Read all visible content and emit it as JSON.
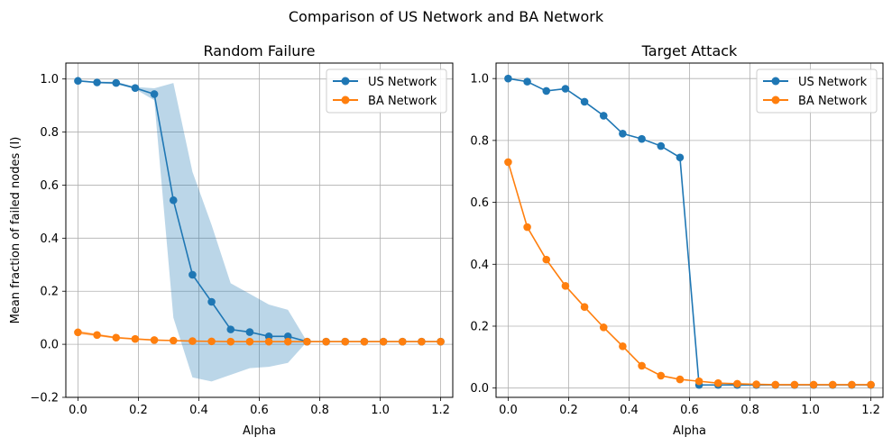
{
  "figure": {
    "title": "Comparison of US Network and BA Network"
  },
  "chart_data": [
    {
      "type": "line",
      "title": "Random Failure",
      "xlabel": "Alpha",
      "ylabel": "Mean fraction of failed nodes (I)",
      "xlim": [
        -0.04,
        1.24
      ],
      "ylim": [
        -0.2,
        1.06
      ],
      "xticks": [
        "0.0",
        "0.2",
        "0.4",
        "0.6",
        "0.8",
        "1.0",
        "1.2"
      ],
      "yticks": [
        "−0.2",
        "0.0",
        "0.2",
        "0.4",
        "0.6",
        "0.8",
        "1.0"
      ],
      "grid": true,
      "legend": "upper right",
      "x": [
        0.0,
        0.0632,
        0.1263,
        0.1895,
        0.2526,
        0.3158,
        0.3789,
        0.4421,
        0.5053,
        0.5684,
        0.6316,
        0.6947,
        0.7579,
        0.8211,
        0.8842,
        0.9474,
        1.0105,
        1.0737,
        1.1368,
        1.2
      ],
      "series": [
        {
          "name": "US Network",
          "color": "#1f77b4",
          "values": [
            0.993,
            0.987,
            0.985,
            0.966,
            0.943,
            0.543,
            0.262,
            0.16,
            0.056,
            0.046,
            0.03,
            0.03,
            0.01,
            0.01,
            0.01,
            0.01,
            0.01,
            0.01,
            0.01,
            0.01
          ],
          "band_upper": [
            0.995,
            0.99,
            0.99,
            0.97,
            0.965,
            0.985,
            0.65,
            0.45,
            0.23,
            0.19,
            0.15,
            0.13,
            0.01,
            0.01,
            0.01,
            0.01,
            0.01,
            0.01,
            0.01,
            0.01
          ],
          "band_lower": [
            0.99,
            0.983,
            0.98,
            0.962,
            0.92,
            0.1,
            -0.125,
            -0.14,
            -0.115,
            -0.09,
            -0.085,
            -0.07,
            0.01,
            0.01,
            0.01,
            0.01,
            0.01,
            0.01,
            0.01,
            0.01
          ]
        },
        {
          "name": "BA Network",
          "color": "#ff7f0e",
          "values": [
            0.045,
            0.035,
            0.025,
            0.02,
            0.016,
            0.014,
            0.012,
            0.011,
            0.01,
            0.01,
            0.01,
            0.01,
            0.01,
            0.01,
            0.01,
            0.01,
            0.01,
            0.01,
            0.01,
            0.01
          ],
          "band_upper": [
            0.052,
            0.04,
            0.029,
            0.023,
            0.018,
            0.016,
            0.013,
            0.012,
            0.011,
            0.011,
            0.011,
            0.011,
            0.011,
            0.011,
            0.011,
            0.011,
            0.011,
            0.011,
            0.011,
            0.011
          ],
          "band_lower": [
            0.038,
            0.03,
            0.021,
            0.017,
            0.014,
            0.012,
            0.011,
            0.01,
            0.009,
            0.009,
            0.009,
            0.009,
            0.009,
            0.009,
            0.009,
            0.009,
            0.009,
            0.009,
            0.009,
            0.009
          ]
        }
      ]
    },
    {
      "type": "line",
      "title": "Target Attack",
      "xlabel": "Alpha",
      "ylabel": "",
      "xlim": [
        -0.04,
        1.24
      ],
      "ylim": [
        -0.03,
        1.05
      ],
      "xticks": [
        "0.0",
        "0.2",
        "0.4",
        "0.6",
        "0.8",
        "1.0",
        "1.2"
      ],
      "yticks": [
        "0.0",
        "0.2",
        "0.4",
        "0.6",
        "0.8",
        "1.0"
      ],
      "grid": true,
      "legend": "upper right",
      "x": [
        0.0,
        0.0632,
        0.1263,
        0.1895,
        0.2526,
        0.3158,
        0.3789,
        0.4421,
        0.5053,
        0.5684,
        0.6316,
        0.6947,
        0.7579,
        0.8211,
        0.8842,
        0.9474,
        1.0105,
        1.0737,
        1.1368,
        1.2
      ],
      "series": [
        {
          "name": "US Network",
          "color": "#1f77b4",
          "values": [
            1.0,
            0.99,
            0.96,
            0.967,
            0.925,
            0.88,
            0.822,
            0.805,
            0.782,
            0.745,
            0.01,
            0.01,
            0.01,
            0.01,
            0.01,
            0.01,
            0.01,
            0.01,
            0.01,
            0.01
          ]
        },
        {
          "name": "BA Network",
          "color": "#ff7f0e",
          "values": [
            0.73,
            0.52,
            0.415,
            0.33,
            0.262,
            0.196,
            0.135,
            0.072,
            0.04,
            0.028,
            0.022,
            0.016,
            0.014,
            0.012,
            0.011,
            0.011,
            0.011,
            0.011,
            0.011,
            0.011
          ]
        }
      ]
    }
  ]
}
